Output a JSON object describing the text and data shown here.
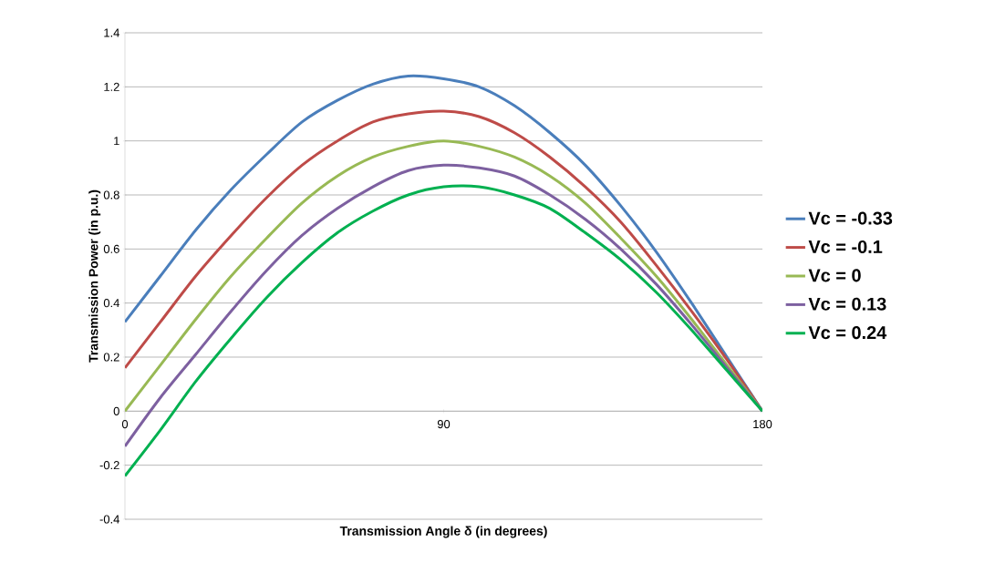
{
  "chart_data": {
    "type": "line",
    "xlabel": "Transmission Angle δ (in degrees)",
    "ylabel": "Transmission Power (in p.u.)",
    "x": [
      0,
      10,
      20,
      30,
      40,
      50,
      60,
      70,
      80,
      90,
      100,
      110,
      120,
      130,
      140,
      150,
      160,
      170,
      180
    ],
    "xlim": [
      0,
      180
    ],
    "xticks": [
      0,
      90,
      180
    ],
    "ylim": [
      -0.4,
      1.4
    ],
    "yticks": [
      -0.4,
      -0.2,
      0,
      0.2,
      0.4,
      0.6,
      0.8,
      1,
      1.2,
      1.4
    ],
    "grid": "y",
    "legend": "right",
    "marker": "none",
    "line_style": "solid",
    "series": [
      {
        "name": "Vc = -0.33",
        "color": "#4a7ebb",
        "values": [
          0.33,
          0.5,
          0.67,
          0.82,
          0.95,
          1.07,
          1.15,
          1.21,
          1.24,
          1.23,
          1.2,
          1.13,
          1.03,
          0.91,
          0.76,
          0.59,
          0.4,
          0.2,
          0
        ]
      },
      {
        "name": "Vc = -0.1",
        "color": "#be4b48",
        "values": [
          0.16,
          0.33,
          0.5,
          0.65,
          0.79,
          0.91,
          1.0,
          1.07,
          1.1,
          1.11,
          1.09,
          1.03,
          0.94,
          0.83,
          0.7,
          0.54,
          0.37,
          0.19,
          0
        ]
      },
      {
        "name": "Vc = 0",
        "color": "#98b954",
        "values": [
          0,
          0.17,
          0.34,
          0.5,
          0.64,
          0.77,
          0.87,
          0.94,
          0.98,
          1,
          0.98,
          0.94,
          0.87,
          0.77,
          0.64,
          0.5,
          0.34,
          0.17,
          0
        ]
      },
      {
        "name": "Vc = 0.13",
        "color": "#7d60a0",
        "values": [
          -0.13,
          0.05,
          0.21,
          0.37,
          0.52,
          0.65,
          0.75,
          0.83,
          0.89,
          0.91,
          0.9,
          0.87,
          0.8,
          0.71,
          0.6,
          0.47,
          0.32,
          0.16,
          0
        ]
      },
      {
        "name": "Vc = 0.24",
        "color": "#00b050",
        "values": [
          -0.24,
          -0.07,
          0.11,
          0.27,
          0.42,
          0.55,
          0.66,
          0.74,
          0.8,
          0.83,
          0.83,
          0.8,
          0.75,
          0.66,
          0.56,
          0.44,
          0.3,
          0.15,
          0
        ]
      }
    ]
  }
}
